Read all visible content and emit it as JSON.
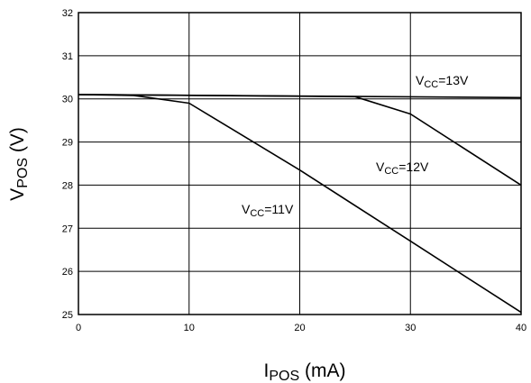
{
  "chart_data": {
    "type": "line",
    "xlabel": {
      "main": "I",
      "sub": "POS",
      "rest": " (mA)"
    },
    "ylabel": {
      "main": "V",
      "sub": "POS",
      "rest": " (V)"
    },
    "xlim": [
      0,
      40
    ],
    "ylim": [
      25,
      32
    ],
    "xticks": [
      0,
      10,
      20,
      30,
      40
    ],
    "yticks": [
      25,
      26,
      27,
      28,
      29,
      30,
      31,
      32
    ],
    "grid": true,
    "series": [
      {
        "name": {
          "main": "V",
          "sub": "CC",
          "rest": "=13V"
        },
        "x": [
          0,
          40
        ],
        "y": [
          30.1,
          30.03
        ]
      },
      {
        "name": {
          "main": "V",
          "sub": "CC",
          "rest": "=12V"
        },
        "x": [
          0,
          25,
          30,
          40
        ],
        "y": [
          30.1,
          30.05,
          29.65,
          28.0
        ]
      },
      {
        "name": {
          "main": "V",
          "sub": "CC",
          "rest": "=11V"
        },
        "x": [
          0,
          5,
          10,
          20,
          30,
          40
        ],
        "y": [
          30.1,
          30.08,
          29.9,
          28.35,
          26.7,
          25.05
        ]
      }
    ]
  }
}
